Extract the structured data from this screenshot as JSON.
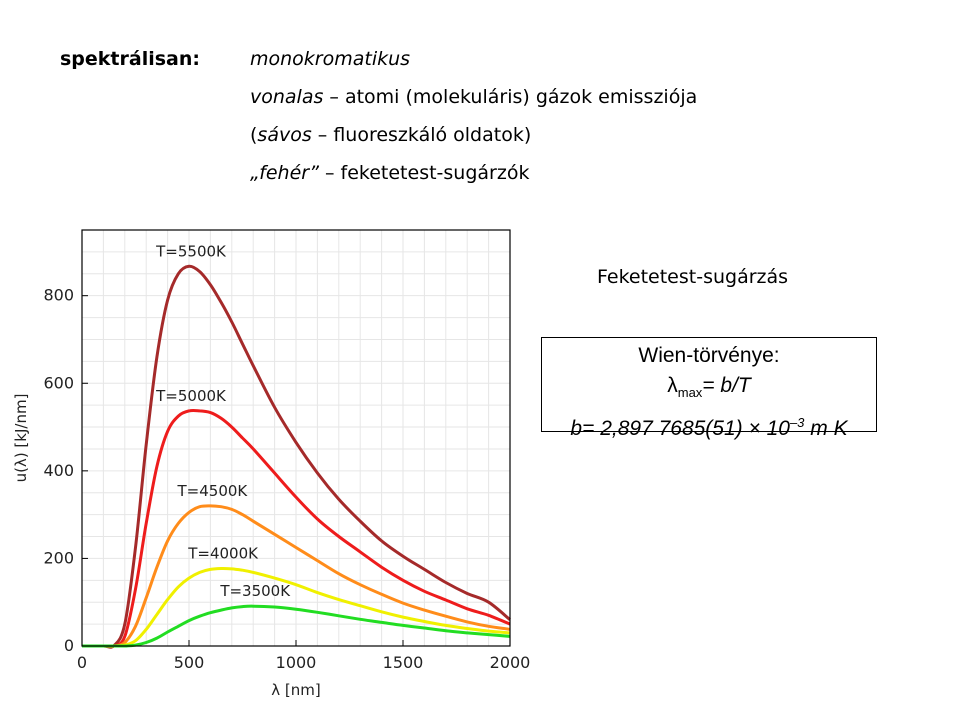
{
  "bullets": {
    "lead": "spektrálisan:",
    "items": [
      {
        "em": "monokromatikus",
        "rest": ""
      },
      {
        "em": "vonalas",
        "rest": " – atomi (molekuláris) gázok emissziója"
      },
      {
        "pre": "(",
        "em": "sávos",
        "rest": " – fluoreszkáló oldatok)"
      },
      {
        "em": "„fehér”",
        "rest": " – feketetest-sugárzók"
      }
    ]
  },
  "caption": "Feketetest-sugárzás",
  "wien": {
    "title": "Wien-törvénye:",
    "lambda": "λ",
    "sub": "max",
    "eq": "= b/T",
    "const_pre": "b= 2,897 7685(51) × 10",
    "const_exp": "–3",
    "const_post": " m K"
  },
  "chart_data": {
    "type": "line",
    "xlabel": "λ [nm]",
    "ylabel": "u(λ) [kJ/nm]",
    "xlim": [
      0,
      2000
    ],
    "ylim": [
      0,
      950
    ],
    "xticks": [
      0,
      500,
      1000,
      1500,
      2000
    ],
    "yticks": [
      0,
      200,
      400,
      600,
      800
    ],
    "grid": true,
    "x": [
      100,
      150,
      200,
      250,
      300,
      350,
      400,
      450,
      500,
      550,
      600,
      650,
      700,
      750,
      800,
      900,
      1000,
      1100,
      1200,
      1300,
      1400,
      1500,
      1600,
      1700,
      1800,
      1900,
      2000
    ],
    "series": [
      {
        "name": "T=5500K",
        "color": "#a52a2a",
        "values": [
          0,
          1,
          50,
          225,
          460,
          660,
          790,
          850,
          867,
          855,
          825,
          785,
          740,
          690,
          640,
          545,
          465,
          395,
          335,
          285,
          240,
          205,
          175,
          145,
          120,
          100,
          60
        ]
      },
      {
        "name": "T=5000K",
        "color": "#ee1c1c",
        "values": [
          0,
          0,
          22,
          130,
          280,
          410,
          490,
          525,
          537,
          537,
          533,
          520,
          500,
          475,
          450,
          395,
          340,
          290,
          250,
          215,
          180,
          150,
          125,
          105,
          85,
          70,
          50
        ]
      },
      {
        "name": "T=4500K",
        "color": "#ff8c1a",
        "values": [
          0,
          0,
          8,
          45,
          110,
          180,
          240,
          280,
          305,
          318,
          320,
          318,
          312,
          300,
          285,
          255,
          225,
          195,
          165,
          140,
          118,
          98,
          82,
          68,
          55,
          45,
          38
        ]
      },
      {
        "name": "T=4000K",
        "color": "#f0f000",
        "values": [
          0,
          0,
          2,
          12,
          38,
          72,
          106,
          135,
          155,
          168,
          175,
          177,
          176,
          173,
          168,
          155,
          140,
          122,
          106,
          92,
          78,
          66,
          56,
          47,
          40,
          34,
          30
        ]
      },
      {
        "name": "T=3500K",
        "color": "#22dd22",
        "values": [
          0,
          0,
          0,
          2,
          8,
          18,
          32,
          45,
          58,
          68,
          76,
          82,
          87,
          90,
          91,
          89,
          84,
          77,
          69,
          61,
          54,
          47,
          41,
          35,
          30,
          26,
          22
        ]
      }
    ]
  }
}
